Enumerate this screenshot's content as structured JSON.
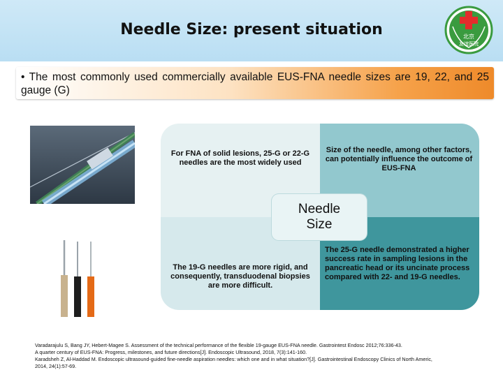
{
  "header": {
    "title": "Needle Size: present situation",
    "logo": {
      "text_line1": "北京",
      "text_line2": "友谊医院",
      "cross_color": "#e32c2c",
      "ring_color": "#3a9b3f"
    }
  },
  "bullet": {
    "text": "• The most commonly used commercially available EUS-FNA needle sizes are 19, 22, and 25 gauge (G)"
  },
  "quadrants": {
    "top_left": "For FNA of solid lesions, 25-G or 22-G needles are the most widely used",
    "top_right": "Size of the needle, among other factors, can potentially influence the outcome of EUS-FNA",
    "bottom_left": "The 19-G needles are more rigid, and consequently, transduodenal biopsies are more difficult.",
    "bottom_right": "The 25-G needle demonstrated a higher success rate in sampling lesions in the pancreatic head or its uncinate process compared with 22- and 19-G needles.",
    "center_line1": "Needle",
    "center_line2": "Size"
  },
  "references": [
    "Varadarajulu S, Bang JY, Hebert-Magee S. Assessment of the technical performance of the flexible 19-gauge EUS-FNA  needle. Gastrointest Endosc 2012;76:336-43.",
    "A quarter century of EUS-FNA: Progress, milestones, and future directions[J]. Endoscopic Ultrasound, 2018, 7(3):141-160.",
    "Karadsheh Z, Al-Haddad M.  Endoscopic ultrasound-guided fine-needle aspiration needles: which one and in what situation?[J]. Gastrointestinal Endoscopy Clinics of North Americ,",
    "2014, 24(1):57-69."
  ],
  "colors": {
    "header_band": "#c6e5f6",
    "bullet_gradient_end": "#ee8a2a",
    "quadrant_dark": "#3f969d"
  }
}
